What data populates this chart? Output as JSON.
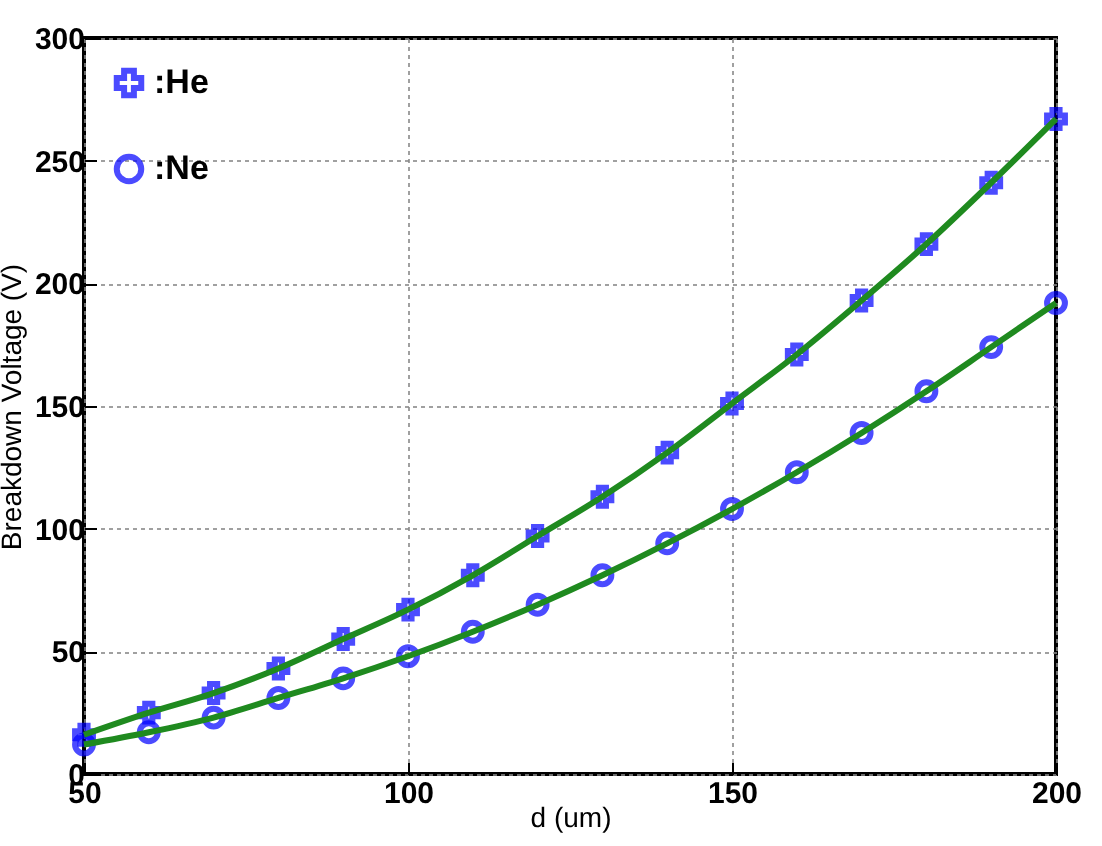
{
  "chart_data": {
    "type": "scatter",
    "xlabel": "d (um)",
    "ylabel": "Breakdown Voltage (V)",
    "x": [
      50,
      60,
      70,
      80,
      90,
      100,
      110,
      120,
      130,
      140,
      150,
      160,
      170,
      180,
      190,
      200
    ],
    "series": [
      {
        "name": ":He",
        "marker": "cross",
        "color": "#0000ff",
        "values": [
          16,
          25,
          33,
          43,
          55,
          67,
          81,
          97,
          113,
          131,
          151,
          171,
          193,
          216,
          241,
          267
        ]
      },
      {
        "name": ":Ne",
        "marker": "circle",
        "color": "#0000ff",
        "values": [
          12,
          17,
          23,
          31,
          39,
          48,
          58,
          69,
          81,
          94,
          108,
          123,
          139,
          156,
          174,
          192
        ]
      },
      {
        "type": "line",
        "color": "#1f8a1f",
        "values": [
          16,
          25,
          33,
          43,
          55,
          67,
          81,
          97,
          113,
          131,
          151,
          171,
          193,
          216,
          241,
          267
        ]
      },
      {
        "type": "line",
        "color": "#1f8a1f",
        "values": [
          12,
          17,
          23,
          31,
          39,
          48,
          58,
          69,
          81,
          94,
          108,
          123,
          139,
          156,
          174,
          192
        ]
      }
    ],
    "xlim": [
      50,
      200
    ],
    "xticks": [
      50,
      100,
      150,
      200
    ],
    "ylim": [
      0,
      300
    ],
    "yticks": [
      0,
      50,
      100,
      150,
      200,
      250,
      300
    ],
    "grid": true,
    "legend": "top left"
  }
}
